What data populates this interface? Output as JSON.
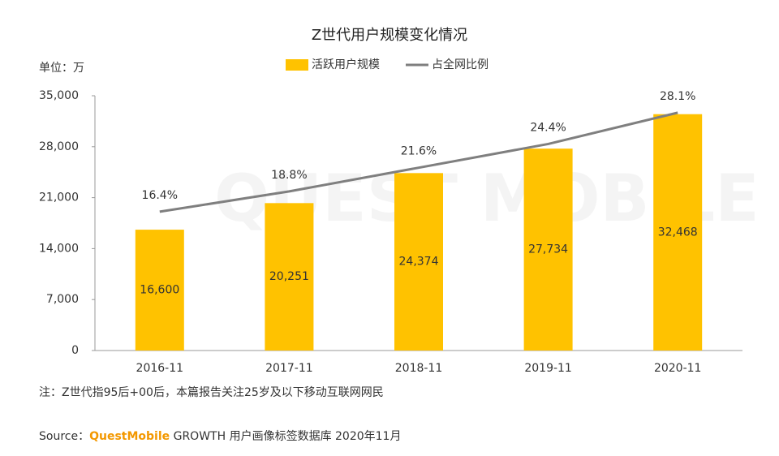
{
  "chart_data": {
    "type": "combo",
    "title": "Z世代用户规模变化情况",
    "y_label": "单位：万",
    "watermark": "QUEST MOBILE",
    "categories": [
      "2016-11",
      "2017-11",
      "2018-11",
      "2019-11",
      "2020-11"
    ],
    "series": [
      {
        "name": "活跃用户规模",
        "type": "bar",
        "color": "#FFC200",
        "values": [
          16600,
          20251,
          24374,
          27734,
          32468
        ],
        "value_labels": [
          "16,600",
          "20,251",
          "24,374",
          "27,734",
          "32,468"
        ]
      },
      {
        "name": "占全网比例",
        "type": "line",
        "axis": "y2",
        "color": "#7F7F7F",
        "values": [
          16.4,
          18.8,
          21.6,
          24.4,
          28.1
        ],
        "value_labels": [
          "16.4%",
          "18.8%",
          "21.6%",
          "24.4%",
          "28.1%"
        ]
      }
    ],
    "ylim": [
      0,
      35000
    ],
    "yticks": [
      0,
      {
        "value": 7000,
        "label": "7,000"
      },
      {
        "value": 14000,
        "label": "14,000"
      },
      {
        "value": 21000,
        "label": "21,000"
      },
      {
        "value": 28000,
        "label": "28,000"
      },
      {
        "value": 35000,
        "label": "35,000"
      }
    ],
    "y2lim": [
      0,
      30.1
    ],
    "note": "注：Z世代指95后+00后，本篇报告关注25岁及以下移动互联网网民",
    "source": {
      "prefix": "Source：",
      "brand": "QuestMobile",
      "text": " GROWTH 用户画像标签数据库 2020年11月"
    }
  }
}
